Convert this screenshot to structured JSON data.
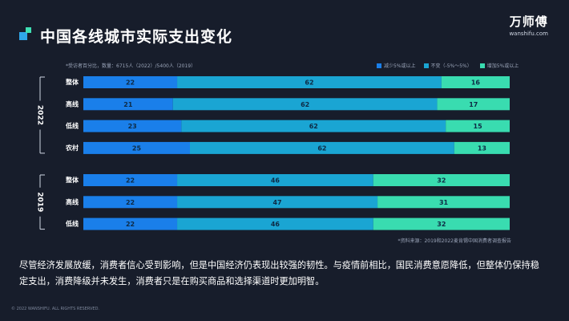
{
  "page": {
    "title": "中国各线城市实际支出变化",
    "brand_cn": "万师傅",
    "brand_en": "wanshifu.com",
    "note": "*受访者百分比，数量：6715人（2022）/5400人（2019）",
    "source": "*资料来源：2019和2022麦肯锡中国消费者调查报告",
    "body_text": "尽管经济发展放缓，消费者信心受到影响，但是中国经济仍表现出较强的韧性。与疫情前相比，国民消费意愿降低，但整体仍保持稳定支出，消费降级并未发生，消费者只是在购买商品和选择渠道时更加明智。",
    "copyright": "© 2022 WANSHIFU. ALL RIGHTS RESERVED."
  },
  "colors": {
    "background": "#171d2b",
    "decrease": "#1a7fea",
    "flat": "#1aa5d3",
    "increase": "#39dcb0",
    "bar_text": "#0e2a44"
  },
  "chart_data": {
    "type": "bar",
    "orientation": "horizontal",
    "stacked": true,
    "percent_total": 100,
    "series_names": [
      "减少5%或以上",
      "不变（-5%～5%）",
      "增加5%或以上"
    ],
    "legend_position": "top-right",
    "groups": [
      {
        "label": "2022",
        "categories": [
          "整体",
          "高线",
          "低线",
          "农村"
        ],
        "series": [
          {
            "name": "减少5%或以上",
            "values": [
              22,
              21,
              23,
              25
            ]
          },
          {
            "name": "不变（-5%～5%）",
            "values": [
              62,
              62,
              62,
              62
            ]
          },
          {
            "name": "增加5%或以上",
            "values": [
              16,
              17,
              15,
              13
            ]
          }
        ]
      },
      {
        "label": "2019",
        "categories": [
          "整体",
          "高线",
          "低线"
        ],
        "series": [
          {
            "name": "减少5%或以上",
            "values": [
              22,
              22,
              22
            ]
          },
          {
            "name": "不变（-5%～5%）",
            "values": [
              46,
              47,
              46
            ]
          },
          {
            "name": "增加5%或以上",
            "values": [
              32,
              31,
              32
            ]
          }
        ]
      }
    ]
  }
}
